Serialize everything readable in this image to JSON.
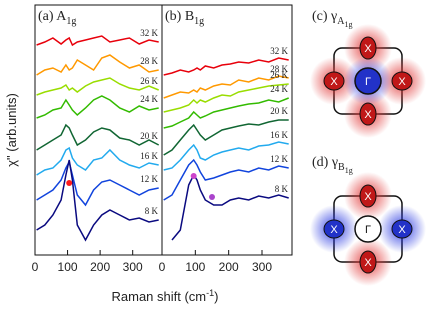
{
  "figure": {
    "y_label": "χ\" (arb.units)",
    "x_label": "Raman shift (cm",
    "x_label_sup": "-1",
    "x_label_end": ")"
  },
  "chart_data": [
    {
      "type": "line",
      "title": "(a) A",
      "title_subscript": "1g",
      "x": [
        5,
        30,
        55,
        80,
        95,
        105,
        115,
        130,
        155,
        180,
        205,
        230,
        260,
        290,
        320,
        350,
        380
      ],
      "xlim": [
        0,
        390
      ],
      "xticks": [
        0,
        100,
        200,
        300
      ],
      "ylim": [
        0,
        250
      ],
      "series": [
        {
          "name": "32 K",
          "color": "#e8000b",
          "values": [
            210,
            213,
            217,
            211,
            215,
            217,
            210,
            213,
            215,
            217,
            219,
            213,
            215,
            217,
            211,
            215,
            213
          ]
        },
        {
          "name": "28 K",
          "color": "#ff9900",
          "values": [
            180,
            185,
            187,
            183,
            190,
            185,
            187,
            195,
            190,
            185,
            197,
            200,
            193,
            187,
            190,
            183,
            185
          ]
        },
        {
          "name": "26 K",
          "color": "#99dd00",
          "values": [
            160,
            163,
            165,
            167,
            170,
            165,
            167,
            163,
            169,
            173,
            175,
            177,
            171,
            167,
            165,
            169,
            165
          ]
        },
        {
          "name": "24 K",
          "color": "#33bb00",
          "values": [
            137,
            140,
            145,
            147,
            155,
            150,
            145,
            140,
            147,
            155,
            159,
            155,
            147,
            143,
            149,
            145,
            147
          ]
        },
        {
          "name": "20 K",
          "color": "#116633",
          "values": [
            105,
            110,
            115,
            120,
            130,
            127,
            120,
            110,
            115,
            123,
            127,
            125,
            117,
            115,
            110,
            115,
            110
          ]
        },
        {
          "name": "16 K",
          "color": "#22aaee",
          "values": [
            80,
            85,
            87,
            95,
            105,
            107,
            97,
            90,
            85,
            95,
            97,
            105,
            95,
            90,
            87,
            92,
            90
          ]
        },
        {
          "name": "12 K",
          "color": "#1144dd",
          "values": [
            55,
            60,
            65,
            75,
            87,
            93,
            80,
            60,
            50,
            65,
            73,
            75,
            70,
            65,
            60,
            65,
            67
          ]
        },
        {
          "name": "8 K",
          "color": "#0a0a80",
          "values": [
            25,
            30,
            40,
            55,
            80,
            95,
            75,
            30,
            15,
            30,
            40,
            45,
            40,
            35,
            37,
            33,
            35
          ]
        }
      ],
      "markers": [
        {
          "x": 105,
          "y": 72,
          "color": "#ff1a1a"
        }
      ]
    },
    {
      "type": "line",
      "title": "(b) B",
      "title_subscript": "1g",
      "x": [
        5,
        30,
        55,
        80,
        95,
        105,
        115,
        130,
        155,
        180,
        205,
        230,
        260,
        290,
        320,
        350,
        380
      ],
      "xlim": [
        0,
        390
      ],
      "xticks": [
        0,
        100,
        200,
        300
      ],
      "ylim": [
        0,
        250
      ],
      "series": [
        {
          "name": "32 K",
          "color": "#e8000b",
          "values": [
            180,
            182,
            185,
            183,
            185,
            187,
            185,
            189,
            187,
            190,
            191,
            193,
            192,
            195,
            193,
            197,
            195
          ]
        },
        {
          "name": "28 K",
          "color": "#ff9900",
          "values": [
            157,
            160,
            163,
            162,
            165,
            163,
            167,
            165,
            169,
            171,
            170,
            175,
            173,
            177,
            175,
            179,
            177
          ]
        },
        {
          "name": "26 K",
          "color": "#99dd00",
          "values": [
            143,
            145,
            147,
            150,
            155,
            152,
            155,
            153,
            157,
            160,
            159,
            163,
            165,
            167,
            169,
            170,
            171
          ]
        },
        {
          "name": "24 K",
          "color": "#33bb00",
          "values": [
            127,
            129,
            133,
            137,
            143,
            140,
            137,
            139,
            143,
            145,
            147,
            149,
            151,
            152,
            155,
            153,
            157
          ]
        },
        {
          "name": "20 K",
          "color": "#116633",
          "values": [
            100,
            105,
            115,
            125,
            130,
            125,
            120,
            115,
            120,
            125,
            127,
            129,
            131,
            130,
            133,
            135,
            135
          ]
        },
        {
          "name": "16 K",
          "color": "#22aaee",
          "values": [
            85,
            87,
            95,
            105,
            110,
            105,
            97,
            95,
            100,
            103,
            105,
            107,
            105,
            109,
            110,
            113,
            111
          ]
        },
        {
          "name": "12 K",
          "color": "#1144dd",
          "values": [
            55,
            60,
            75,
            90,
            95,
            90,
            83,
            75,
            77,
            80,
            83,
            85,
            83,
            87,
            85,
            89,
            87
          ]
        },
        {
          "name": "8 K",
          "color": "#0a0a80",
          "values": [
            null,
            15,
            25,
            70,
            80,
            75,
            65,
            55,
            50,
            50,
            55,
            57,
            55,
            59,
            57,
            60,
            57
          ]
        }
      ],
      "markers": [
        {
          "x": 95,
          "y": 79,
          "color": "#cc44cc"
        },
        {
          "x": 150,
          "y": 58,
          "color": "#aa44cc"
        }
      ]
    }
  ],
  "diagrams": {
    "c": {
      "title": "(c) γ",
      "sub": "A",
      "subsub": "1g",
      "center": "Γ",
      "nodes": [
        "X",
        "X",
        "X",
        "X"
      ]
    },
    "d": {
      "title": "(d) γ",
      "sub": "B",
      "subsub": "1g",
      "center": "Γ",
      "nodes": [
        "X",
        "X",
        "X",
        "X"
      ]
    }
  }
}
